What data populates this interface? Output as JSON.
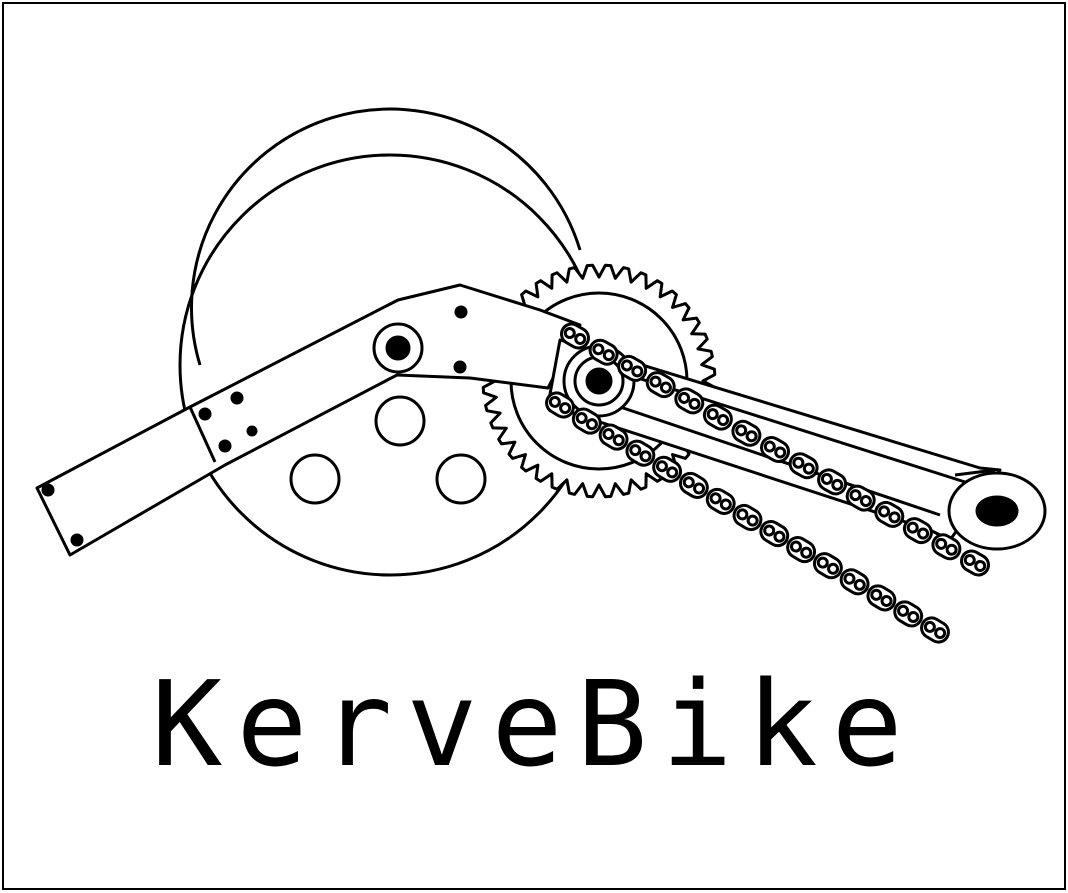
{
  "logo": {
    "brand_name": "KerveBike",
    "icon_name": "bicycle-crank-drivetrain-icon",
    "stroke_color": "#000000",
    "fill_color": "#ffffff"
  }
}
